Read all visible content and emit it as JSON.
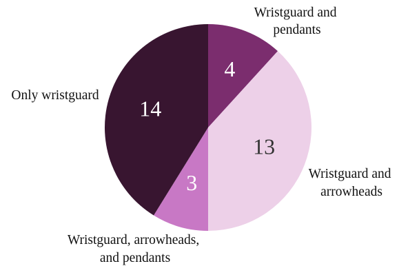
{
  "chart_data": {
    "type": "pie",
    "slices": [
      {
        "label": "Wristguard and pendants",
        "value": 4,
        "color": "#7b2d6e"
      },
      {
        "label": "Wristguard and arrowheads",
        "value": 13,
        "color": "#edd0e8"
      },
      {
        "label": "Wristguard, arrowheads, and pendants",
        "value": 3,
        "color": "#c878c5"
      },
      {
        "label": "Only wristguard",
        "value": 14,
        "color": "#381530"
      }
    ],
    "start_angle": "12 o'clock",
    "direction": "clockwise",
    "label_text_color_on_light": "#333333",
    "label_text_color_on_dark": "#ffffff"
  }
}
